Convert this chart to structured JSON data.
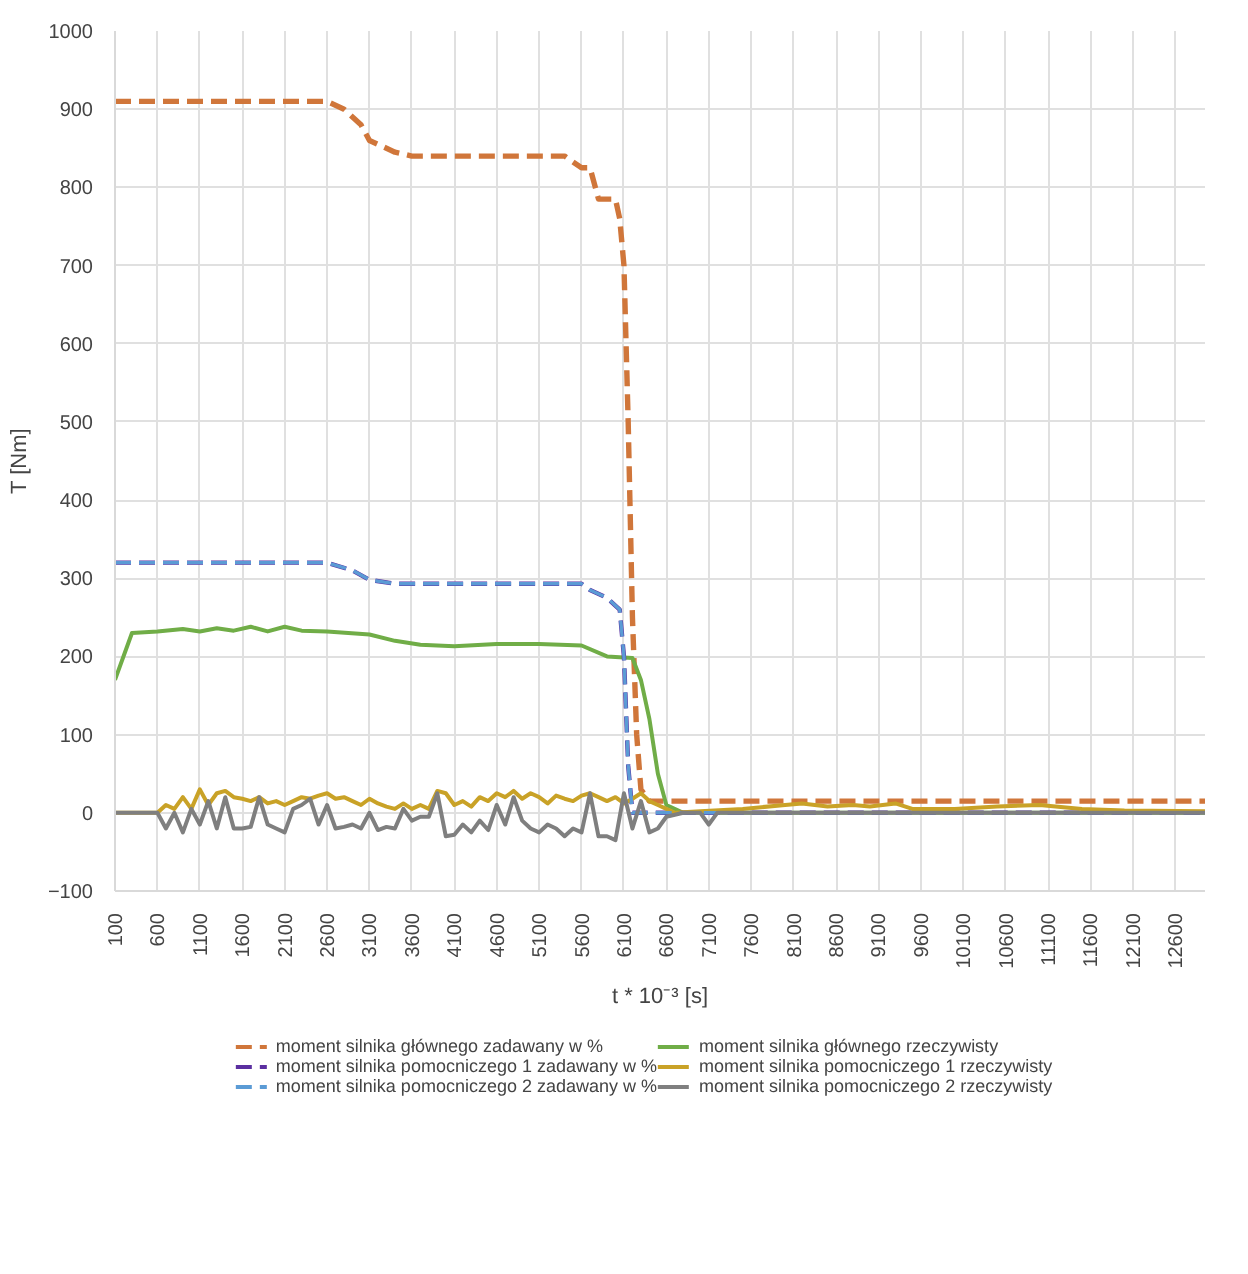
{
  "chart_data": {
    "type": "line",
    "xlabel": "t * 10⁻³ [s]",
    "ylabel": "T [Nm]",
    "xlim": [
      100,
      12950
    ],
    "xticks": [
      100,
      600,
      1100,
      1600,
      2100,
      2600,
      3100,
      3600,
      4100,
      4600,
      5100,
      5600,
      6100,
      6600,
      7100,
      7600,
      8100,
      8600,
      9100,
      9600,
      10100,
      10600,
      11100,
      11600,
      12100,
      12600
    ],
    "ylim": [
      -100,
      1000
    ],
    "yticks": [
      -100,
      0,
      100,
      200,
      300,
      400,
      500,
      600,
      700,
      800,
      900,
      1000
    ],
    "grid": true,
    "legend": "bottom",
    "marker": "none",
    "series": [
      {
        "name": "moment silnika głównego zadawany w %",
        "color": "#d0763a",
        "line_style": "dashed",
        "x": [
          100,
          2600,
          2800,
          3000,
          3100,
          3400,
          3600,
          5400,
          5600,
          5700,
          5800,
          6000,
          6050,
          6100,
          6150,
          6200,
          6250,
          6300,
          6400,
          12950
        ],
        "values": [
          910,
          910,
          900,
          880,
          860,
          845,
          840,
          840,
          825,
          825,
          785,
          785,
          760,
          700,
          500,
          250,
          100,
          30,
          15,
          15
        ]
      },
      {
        "name": "moment silnika głównego rzeczywisty",
        "color": "#70ad47",
        "line_style": "solid",
        "x": [
          100,
          300,
          600,
          900,
          1100,
          1300,
          1500,
          1700,
          1900,
          2100,
          2300,
          2600,
          3100,
          3400,
          3700,
          4100,
          4600,
          5100,
          5600,
          5900,
          6200,
          6300,
          6400,
          6500,
          6600,
          6800,
          12950
        ],
        "values": [
          170,
          230,
          232,
          235,
          232,
          236,
          233,
          238,
          232,
          238,
          233,
          232,
          228,
          220,
          215,
          213,
          216,
          216,
          214,
          200,
          198,
          170,
          120,
          50,
          10,
          0,
          0
        ]
      },
      {
        "name": "moment silnika pomocniczego 1 zadawany w %",
        "color": "#5b2fa0",
        "line_style": "dashed",
        "x": [
          100,
          2600,
          2900,
          3100,
          3400,
          3600,
          5600,
          5700,
          5900,
          6050,
          6100,
          6150,
          6200,
          12950
        ],
        "values": [
          320,
          320,
          310,
          298,
          293,
          293,
          293,
          285,
          275,
          260,
          200,
          60,
          0,
          0
        ]
      },
      {
        "name": "moment silnika pomocniczego 1 rzeczywisty",
        "color": "#c9a227",
        "line_style": "solid",
        "x": [
          100,
          600,
          700,
          800,
          900,
          1000,
          1100,
          1200,
          1300,
          1400,
          1500,
          1600,
          1700,
          1800,
          1900,
          2000,
          2100,
          2200,
          2300,
          2400,
          2500,
          2600,
          2700,
          2800,
          2900,
          3000,
          3100,
          3200,
          3300,
          3400,
          3500,
          3600,
          3700,
          3800,
          3900,
          4000,
          4100,
          4200,
          4300,
          4400,
          4500,
          4600,
          4700,
          4800,
          4900,
          5000,
          5100,
          5200,
          5300,
          5400,
          5500,
          5600,
          5700,
          5800,
          5900,
          6000,
          6100,
          6200,
          6300,
          6400,
          6500,
          6600,
          6700,
          7000,
          7500,
          8000,
          8200,
          8500,
          8800,
          9000,
          9300,
          9500,
          10000,
          10500,
          11000,
          11500,
          12000,
          12950
        ],
        "values": [
          0,
          0,
          10,
          5,
          20,
          5,
          30,
          10,
          25,
          28,
          20,
          18,
          15,
          20,
          12,
          15,
          10,
          15,
          20,
          18,
          22,
          25,
          18,
          20,
          15,
          10,
          18,
          12,
          8,
          5,
          12,
          5,
          10,
          5,
          28,
          25,
          10,
          15,
          8,
          20,
          15,
          25,
          20,
          28,
          18,
          25,
          20,
          12,
          22,
          18,
          15,
          22,
          25,
          20,
          15,
          20,
          12,
          18,
          25,
          15,
          10,
          5,
          0,
          2,
          5,
          10,
          12,
          8,
          10,
          8,
          12,
          5,
          5,
          8,
          10,
          5,
          3,
          2
        ]
      },
      {
        "name": "moment silnika pomocniczego 2 zadawany w %",
        "color": "#5b9bd5",
        "line_style": "dashed",
        "x": [
          100,
          2600,
          2900,
          3100,
          3400,
          3600,
          5600,
          5700,
          5900,
          6050,
          6100,
          6150,
          6200,
          12950
        ],
        "values": [
          320,
          320,
          310,
          298,
          293,
          293,
          293,
          285,
          275,
          260,
          200,
          60,
          0,
          0
        ]
      },
      {
        "name": "moment silnika pomocniczego 2 rzeczywisty",
        "color": "#7f7f7f",
        "line_style": "solid",
        "x": [
          100,
          600,
          700,
          800,
          900,
          1000,
          1100,
          1200,
          1300,
          1400,
          1500,
          1600,
          1700,
          1800,
          1900,
          2000,
          2100,
          2200,
          2300,
          2400,
          2500,
          2600,
          2700,
          2800,
          2900,
          3000,
          3100,
          3200,
          3300,
          3400,
          3500,
          3600,
          3700,
          3800,
          3900,
          4000,
          4100,
          4200,
          4300,
          4400,
          4500,
          4600,
          4700,
          4800,
          4900,
          5000,
          5100,
          5200,
          5300,
          5400,
          5500,
          5600,
          5700,
          5800,
          5900,
          6000,
          6100,
          6200,
          6300,
          6400,
          6500,
          6600,
          6800,
          7000,
          7100,
          7200,
          8000,
          12950
        ],
        "values": [
          0,
          0,
          -20,
          0,
          -25,
          5,
          -15,
          15,
          -20,
          20,
          -20,
          -20,
          -18,
          20,
          -15,
          -20,
          -25,
          5,
          10,
          18,
          -15,
          10,
          -20,
          -18,
          -15,
          -20,
          0,
          -22,
          -18,
          -20,
          5,
          -10,
          -5,
          -5,
          25,
          -30,
          -28,
          -15,
          -25,
          -10,
          -22,
          10,
          -15,
          20,
          -10,
          -20,
          -25,
          -15,
          -20,
          -30,
          -20,
          -25,
          25,
          -30,
          -30,
          -35,
          25,
          -20,
          15,
          -25,
          -20,
          -5,
          0,
          0,
          -15,
          0,
          0,
          0
        ]
      }
    ]
  }
}
